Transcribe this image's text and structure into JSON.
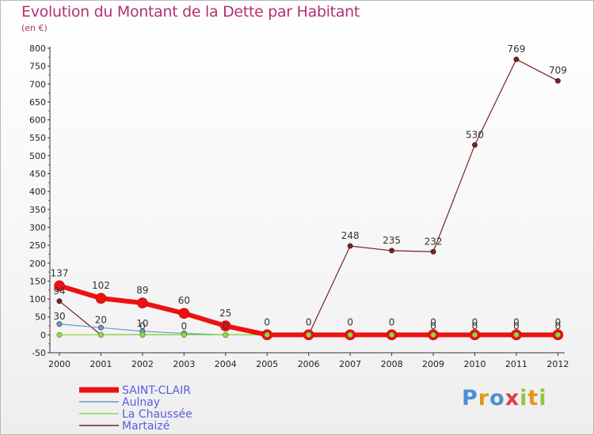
{
  "title": "Evolution du Montant de la Dette par Habitant",
  "subtitle": "(en €)",
  "logo": {
    "letters": [
      "P",
      "r",
      "o",
      "x",
      "i",
      "t",
      "i"
    ],
    "colors": [
      "#4a90d9",
      "#e8941a",
      "#4a90d9",
      "#d94040",
      "#8dc63f",
      "#e8941a",
      "#8dc63f"
    ]
  },
  "chart_data": {
    "type": "line",
    "x": [
      "2000",
      "2001",
      "2002",
      "2003",
      "2004",
      "2005",
      "2006",
      "2007",
      "2008",
      "2009",
      "2010",
      "2011",
      "2012"
    ],
    "ylim": [
      -50,
      800
    ],
    "yticks": [
      "-50",
      "0",
      "50",
      "100",
      "150",
      "200",
      "250",
      "300",
      "350",
      "400",
      "450",
      "500",
      "550",
      "600",
      "650",
      "700",
      "750",
      "800"
    ],
    "grid": false,
    "legend_position": "bottom-left",
    "series": [
      {
        "name": "SAINT-CLAIR",
        "color": "#ee1111",
        "values": [
          137,
          102,
          89,
          60,
          25,
          0,
          0,
          0,
          0,
          0,
          0,
          0,
          0
        ]
      },
      {
        "name": "Aulnay",
        "color": "#6699cc",
        "values": [
          30,
          20,
          10,
          4,
          0,
          0,
          0,
          0,
          0,
          0,
          0,
          0,
          0
        ]
      },
      {
        "name": "La Chaussée",
        "color": "#88dd44",
        "values": [
          0,
          0,
          0,
          0,
          0,
          0,
          0,
          0,
          0,
          0,
          0,
          0,
          0
        ]
      },
      {
        "name": "Martaizé",
        "color": "#772222",
        "values": [
          94,
          0,
          0,
          0,
          0,
          0,
          0,
          248,
          235,
          232,
          530,
          769,
          709
        ]
      }
    ],
    "data_labels": {
      "SAINT-CLAIR": [
        "137",
        "102",
        "89",
        "60",
        "25",
        "0",
        "0",
        "0",
        "0",
        "0",
        "0",
        "0",
        "0"
      ],
      "Aulnay": [
        "30",
        "20",
        "10",
        "",
        "",
        "",
        "",
        "",
        "",
        "",
        "",
        "",
        ""
      ],
      "La Chaussée": [
        "",
        "",
        "0",
        "0",
        "0",
        "",
        "",
        "",
        "",
        "0",
        "0",
        "0",
        "0"
      ],
      "Martaizé": [
        "94",
        "",
        "",
        "",
        "",
        "",
        "",
        "248",
        "235",
        "232",
        "530",
        "769",
        "709"
      ]
    }
  }
}
